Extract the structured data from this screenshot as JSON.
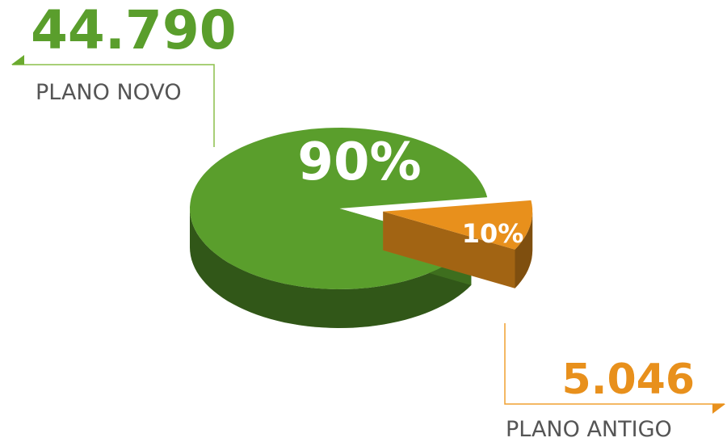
{
  "chart_data": {
    "type": "pie",
    "categories": [
      "PLANO NOVO",
      "PLANO ANTIGO"
    ],
    "values": [
      90,
      10
    ],
    "value_labels": [
      "90%",
      "10%"
    ],
    "count_labels": [
      "44.790",
      "5.046"
    ],
    "colors": [
      "#5a9e2c",
      "#e8901c"
    ]
  }
}
